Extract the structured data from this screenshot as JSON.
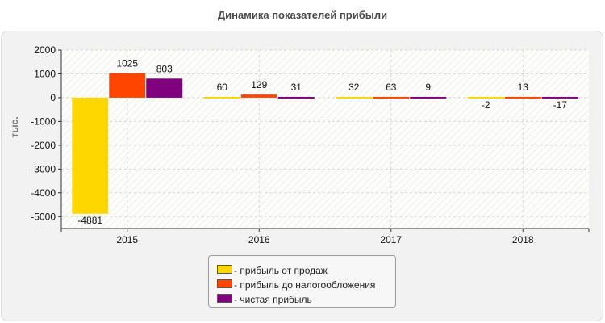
{
  "chart_data": {
    "type": "bar",
    "title": "Динамика показателей прибыли",
    "ylabel": "тыс.",
    "xlabel": "",
    "categories": [
      "2015",
      "2016",
      "2017",
      "2018"
    ],
    "ylim": [
      -5500,
      2000
    ],
    "yticks": [
      2000,
      1000,
      0,
      -1000,
      -2000,
      -3000,
      -4000,
      -5000
    ],
    "grid": true,
    "legend_position": "bottom",
    "series": [
      {
        "name": "- прибыль от продаж",
        "color": "#FFD700",
        "values": [
          -4881,
          60,
          32,
          -2
        ]
      },
      {
        "name": "- прибыль до налогообложения",
        "color": "#FF4500",
        "values": [
          1025,
          129,
          63,
          13
        ]
      },
      {
        "name": "- чистая прибыль",
        "color": "#800080",
        "values": [
          803,
          31,
          9,
          -17
        ]
      }
    ]
  }
}
